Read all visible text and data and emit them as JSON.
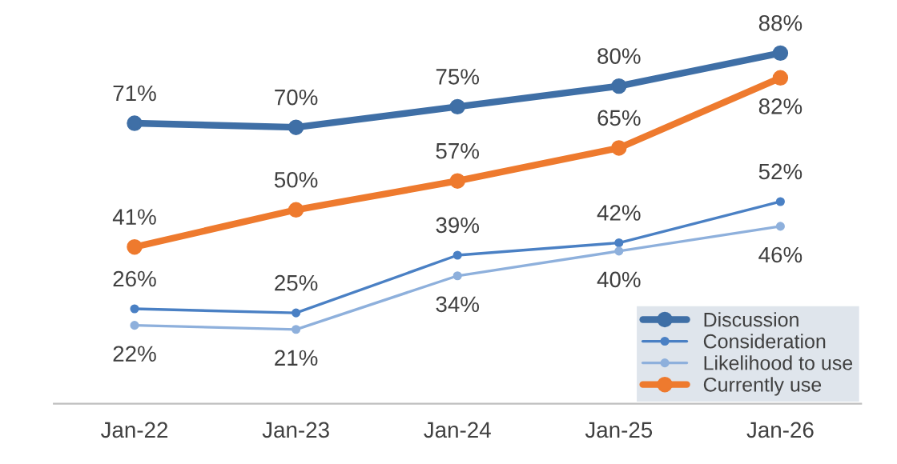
{
  "chart_data": {
    "type": "line",
    "categories": [
      "Jan-22",
      "Jan-23",
      "Jan-24",
      "Jan-25",
      "Jan-26"
    ],
    "series": [
      {
        "name": "Discussion",
        "color": "#3f6fa6",
        "values": [
          71,
          70,
          75,
          80,
          88
        ],
        "value_labels": [
          "71%",
          "70%",
          "75%",
          "80%",
          "88%"
        ]
      },
      {
        "name": "Consideration",
        "color": "#4a80c4",
        "values": [
          26,
          25,
          39,
          42,
          52
        ],
        "value_labels": [
          "26%",
          "25%",
          "39%",
          "42%",
          "52%"
        ]
      },
      {
        "name": "Likelihood to use",
        "color": "#8eb0dc",
        "values": [
          22,
          21,
          34,
          40,
          46
        ],
        "value_labels": [
          "22%",
          "21%",
          "34%",
          "40%",
          "46%"
        ]
      },
      {
        "name": "Currently use",
        "color": "#ee7a2e",
        "values": [
          41,
          50,
          57,
          65,
          82
        ],
        "value_labels": [
          "41%",
          "50%",
          "57%",
          "65%",
          "82%"
        ]
      }
    ],
    "marker": "circle",
    "line_style": "solid",
    "legend": "bottom right",
    "grid": false
  }
}
